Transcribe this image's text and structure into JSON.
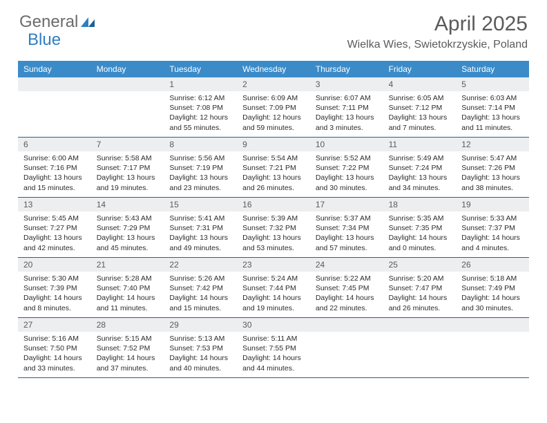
{
  "logo": {
    "word1": "General",
    "word2": "Blue"
  },
  "title": "April 2025",
  "location": "Wielka Wies, Swietokrzyskie, Poland",
  "colors": {
    "header_bg": "#3b8bc9",
    "header_text": "#ffffff",
    "daybar_bg": "#eceef0",
    "daynum_text": "#5a5a5a",
    "body_text": "#2b2b2b",
    "rule": "#2b5e86",
    "logo_gray": "#6b6b6b",
    "logo_blue": "#2f7ec2",
    "title_gray": "#5a5a5a"
  },
  "day_headers": [
    "Sunday",
    "Monday",
    "Tuesday",
    "Wednesday",
    "Thursday",
    "Friday",
    "Saturday"
  ],
  "weeks": [
    [
      {
        "n": "",
        "sr": "",
        "ss": "",
        "dl": ""
      },
      {
        "n": "",
        "sr": "",
        "ss": "",
        "dl": ""
      },
      {
        "n": "1",
        "sr": "Sunrise: 6:12 AM",
        "ss": "Sunset: 7:08 PM",
        "dl": "Daylight: 12 hours and 55 minutes."
      },
      {
        "n": "2",
        "sr": "Sunrise: 6:09 AM",
        "ss": "Sunset: 7:09 PM",
        "dl": "Daylight: 12 hours and 59 minutes."
      },
      {
        "n": "3",
        "sr": "Sunrise: 6:07 AM",
        "ss": "Sunset: 7:11 PM",
        "dl": "Daylight: 13 hours and 3 minutes."
      },
      {
        "n": "4",
        "sr": "Sunrise: 6:05 AM",
        "ss": "Sunset: 7:12 PM",
        "dl": "Daylight: 13 hours and 7 minutes."
      },
      {
        "n": "5",
        "sr": "Sunrise: 6:03 AM",
        "ss": "Sunset: 7:14 PM",
        "dl": "Daylight: 13 hours and 11 minutes."
      }
    ],
    [
      {
        "n": "6",
        "sr": "Sunrise: 6:00 AM",
        "ss": "Sunset: 7:16 PM",
        "dl": "Daylight: 13 hours and 15 minutes."
      },
      {
        "n": "7",
        "sr": "Sunrise: 5:58 AM",
        "ss": "Sunset: 7:17 PM",
        "dl": "Daylight: 13 hours and 19 minutes."
      },
      {
        "n": "8",
        "sr": "Sunrise: 5:56 AM",
        "ss": "Sunset: 7:19 PM",
        "dl": "Daylight: 13 hours and 23 minutes."
      },
      {
        "n": "9",
        "sr": "Sunrise: 5:54 AM",
        "ss": "Sunset: 7:21 PM",
        "dl": "Daylight: 13 hours and 26 minutes."
      },
      {
        "n": "10",
        "sr": "Sunrise: 5:52 AM",
        "ss": "Sunset: 7:22 PM",
        "dl": "Daylight: 13 hours and 30 minutes."
      },
      {
        "n": "11",
        "sr": "Sunrise: 5:49 AM",
        "ss": "Sunset: 7:24 PM",
        "dl": "Daylight: 13 hours and 34 minutes."
      },
      {
        "n": "12",
        "sr": "Sunrise: 5:47 AM",
        "ss": "Sunset: 7:26 PM",
        "dl": "Daylight: 13 hours and 38 minutes."
      }
    ],
    [
      {
        "n": "13",
        "sr": "Sunrise: 5:45 AM",
        "ss": "Sunset: 7:27 PM",
        "dl": "Daylight: 13 hours and 42 minutes."
      },
      {
        "n": "14",
        "sr": "Sunrise: 5:43 AM",
        "ss": "Sunset: 7:29 PM",
        "dl": "Daylight: 13 hours and 45 minutes."
      },
      {
        "n": "15",
        "sr": "Sunrise: 5:41 AM",
        "ss": "Sunset: 7:31 PM",
        "dl": "Daylight: 13 hours and 49 minutes."
      },
      {
        "n": "16",
        "sr": "Sunrise: 5:39 AM",
        "ss": "Sunset: 7:32 PM",
        "dl": "Daylight: 13 hours and 53 minutes."
      },
      {
        "n": "17",
        "sr": "Sunrise: 5:37 AM",
        "ss": "Sunset: 7:34 PM",
        "dl": "Daylight: 13 hours and 57 minutes."
      },
      {
        "n": "18",
        "sr": "Sunrise: 5:35 AM",
        "ss": "Sunset: 7:35 PM",
        "dl": "Daylight: 14 hours and 0 minutes."
      },
      {
        "n": "19",
        "sr": "Sunrise: 5:33 AM",
        "ss": "Sunset: 7:37 PM",
        "dl": "Daylight: 14 hours and 4 minutes."
      }
    ],
    [
      {
        "n": "20",
        "sr": "Sunrise: 5:30 AM",
        "ss": "Sunset: 7:39 PM",
        "dl": "Daylight: 14 hours and 8 minutes."
      },
      {
        "n": "21",
        "sr": "Sunrise: 5:28 AM",
        "ss": "Sunset: 7:40 PM",
        "dl": "Daylight: 14 hours and 11 minutes."
      },
      {
        "n": "22",
        "sr": "Sunrise: 5:26 AM",
        "ss": "Sunset: 7:42 PM",
        "dl": "Daylight: 14 hours and 15 minutes."
      },
      {
        "n": "23",
        "sr": "Sunrise: 5:24 AM",
        "ss": "Sunset: 7:44 PM",
        "dl": "Daylight: 14 hours and 19 minutes."
      },
      {
        "n": "24",
        "sr": "Sunrise: 5:22 AM",
        "ss": "Sunset: 7:45 PM",
        "dl": "Daylight: 14 hours and 22 minutes."
      },
      {
        "n": "25",
        "sr": "Sunrise: 5:20 AM",
        "ss": "Sunset: 7:47 PM",
        "dl": "Daylight: 14 hours and 26 minutes."
      },
      {
        "n": "26",
        "sr": "Sunrise: 5:18 AM",
        "ss": "Sunset: 7:49 PM",
        "dl": "Daylight: 14 hours and 30 minutes."
      }
    ],
    [
      {
        "n": "27",
        "sr": "Sunrise: 5:16 AM",
        "ss": "Sunset: 7:50 PM",
        "dl": "Daylight: 14 hours and 33 minutes."
      },
      {
        "n": "28",
        "sr": "Sunrise: 5:15 AM",
        "ss": "Sunset: 7:52 PM",
        "dl": "Daylight: 14 hours and 37 minutes."
      },
      {
        "n": "29",
        "sr": "Sunrise: 5:13 AM",
        "ss": "Sunset: 7:53 PM",
        "dl": "Daylight: 14 hours and 40 minutes."
      },
      {
        "n": "30",
        "sr": "Sunrise: 5:11 AM",
        "ss": "Sunset: 7:55 PM",
        "dl": "Daylight: 14 hours and 44 minutes."
      },
      {
        "n": "",
        "sr": "",
        "ss": "",
        "dl": ""
      },
      {
        "n": "",
        "sr": "",
        "ss": "",
        "dl": ""
      },
      {
        "n": "",
        "sr": "",
        "ss": "",
        "dl": ""
      }
    ]
  ]
}
